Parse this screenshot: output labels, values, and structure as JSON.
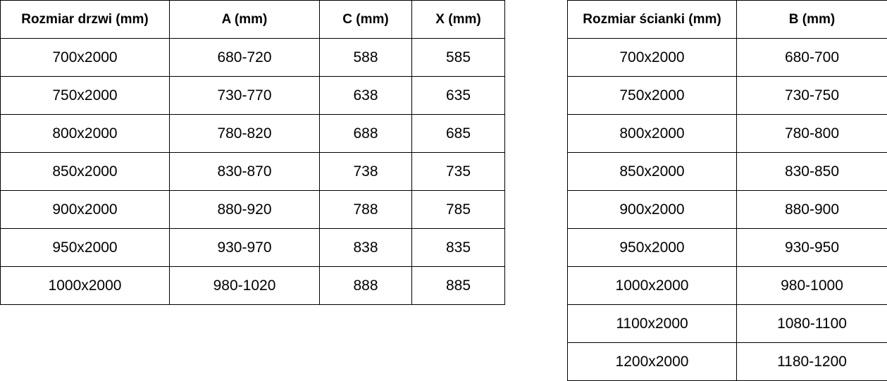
{
  "door_table": {
    "headers": [
      "Rozmiar drzwi (mm)",
      "A (mm)",
      "C (mm)",
      "X (mm)"
    ],
    "rows": [
      [
        "700x2000",
        "680-720",
        "588",
        "585"
      ],
      [
        "750x2000",
        "730-770",
        "638",
        "635"
      ],
      [
        "800x2000",
        "780-820",
        "688",
        "685"
      ],
      [
        "850x2000",
        "830-870",
        "738",
        "735"
      ],
      [
        "900x2000",
        "880-920",
        "788",
        "785"
      ],
      [
        "950x2000",
        "930-970",
        "838",
        "835"
      ],
      [
        "1000x2000",
        "980-1020",
        "888",
        "885"
      ]
    ]
  },
  "wall_table": {
    "headers": [
      "Rozmiar ścianki (mm)",
      "B (mm)"
    ],
    "rows": [
      [
        "700x2000",
        "680-700"
      ],
      [
        "750x2000",
        "730-750"
      ],
      [
        "800x2000",
        "780-800"
      ],
      [
        "850x2000",
        "830-850"
      ],
      [
        "900x2000",
        "880-900"
      ],
      [
        "950x2000",
        "930-950"
      ],
      [
        "1000x2000",
        "980-1000"
      ],
      [
        "1100x2000",
        "1080-1100"
      ],
      [
        "1200x2000",
        "1180-1200"
      ]
    ]
  }
}
